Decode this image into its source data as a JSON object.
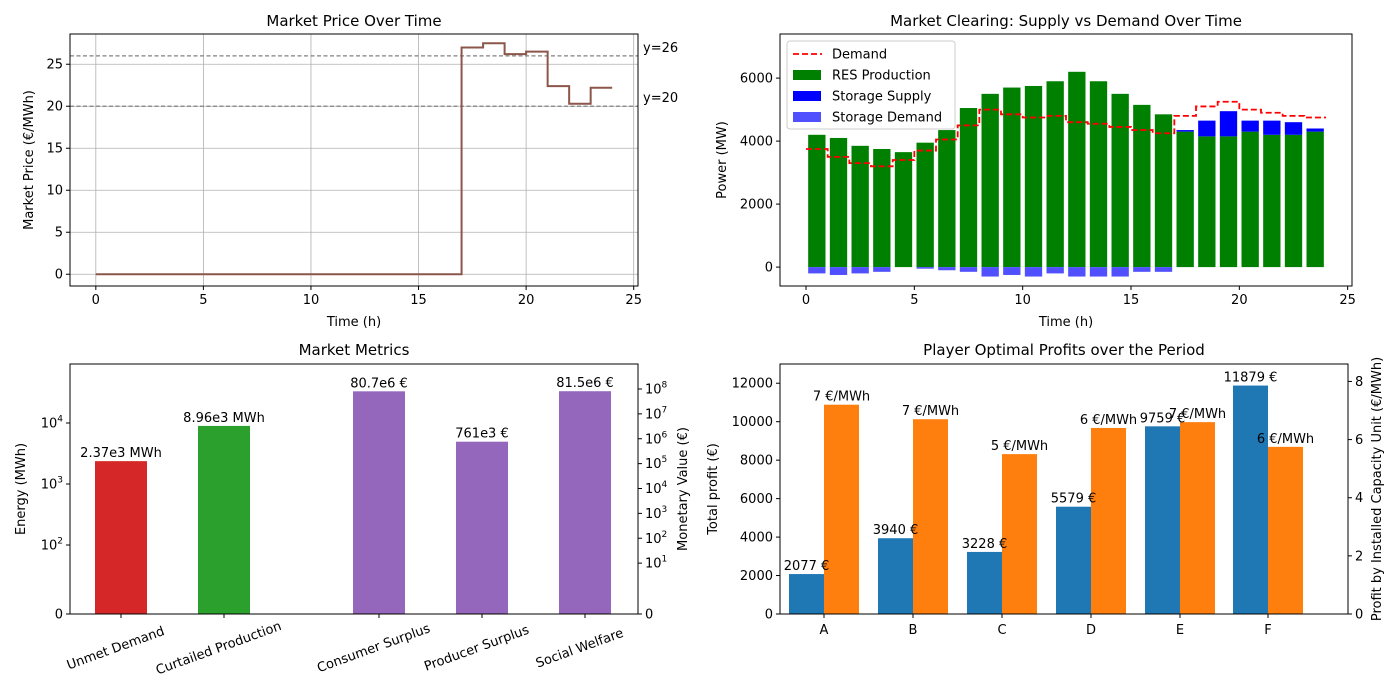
{
  "chart_data": [
    {
      "id": "price",
      "type": "line",
      "title": "Market Price Over Time",
      "xlabel": "Time (h)",
      "ylabel": "Market Price (€/MWh)",
      "xlim": [
        -1.2,
        25.2
      ],
      "ylim": [
        -1.4,
        28.6
      ],
      "xticks": [
        0,
        5,
        10,
        15,
        20,
        25
      ],
      "yticks": [
        0,
        5,
        10,
        15,
        20,
        25
      ],
      "grid": true,
      "series": [
        {
          "color": "#8c564b",
          "step": "post",
          "x": [
            0,
            1,
            2,
            3,
            4,
            5,
            6,
            7,
            8,
            9,
            10,
            11,
            12,
            13,
            14,
            15,
            16,
            17,
            18,
            19,
            20,
            21,
            22,
            23,
            24
          ],
          "values": [
            0,
            0,
            0,
            0,
            0,
            0,
            0,
            0,
            0,
            0,
            0,
            0,
            0,
            0,
            0,
            0,
            0,
            27,
            27.5,
            26.2,
            26.5,
            22.4,
            20.3,
            22.2,
            22.2
          ]
        }
      ],
      "hlines": [
        {
          "y": 26,
          "label": "y=26"
        },
        {
          "y": 20,
          "label": "y=20"
        }
      ]
    },
    {
      "id": "clearing",
      "type": "bar",
      "title": "Market Clearing: Supply vs Demand Over Time",
      "xlabel": "Time (h)",
      "ylabel": "Power (MW)",
      "xlim": [
        -1.2,
        25.2
      ],
      "ylim": [
        -600,
        7400
      ],
      "xticks": [
        0,
        5,
        10,
        15,
        20,
        25
      ],
      "yticks": [
        0,
        2000,
        4000,
        6000
      ],
      "grid": false,
      "legend": "upper left",
      "series": [
        {
          "name": "Demand",
          "color": "#ff0000",
          "style": "dashed-step",
          "values": [
            3750,
            3500,
            3300,
            3200,
            3400,
            3700,
            4050,
            4500,
            5000,
            4850,
            4750,
            4800,
            4600,
            4550,
            4450,
            4350,
            4250,
            4800,
            5100,
            5250,
            5000,
            4900,
            4800,
            4750
          ]
        },
        {
          "name": "RES Production",
          "color": "#008000",
          "values": [
            4200,
            4100,
            3850,
            3750,
            3650,
            3950,
            4350,
            5050,
            5500,
            5700,
            5750,
            5900,
            6200,
            5900,
            5500,
            5150,
            4850,
            4300,
            4150,
            4150,
            4300,
            4200,
            4200,
            4300
          ]
        },
        {
          "name": "Storage Supply",
          "color": "#0000ff",
          "values": [
            0,
            0,
            0,
            0,
            0,
            0,
            0,
            0,
            0,
            0,
            0,
            0,
            0,
            0,
            0,
            0,
            0,
            50,
            500,
            800,
            350,
            450,
            400,
            100
          ]
        },
        {
          "name": "Storage Demand",
          "color": "#5050ff",
          "values": [
            -200,
            -250,
            -200,
            -150,
            0,
            -50,
            -100,
            -150,
            -300,
            -250,
            -300,
            -200,
            -300,
            -300,
            -300,
            -150,
            -150,
            0,
            0,
            0,
            0,
            0,
            0,
            0
          ]
        }
      ]
    },
    {
      "id": "metrics",
      "type": "bar",
      "title": "Market Metrics",
      "ylabel": "Energy (MWh)",
      "y2label": "Monetary Value (€)",
      "yscale": "symlog",
      "categories": [
        "Unmet Demand",
        "Curtailed Production",
        "Consumer Surplus",
        "Producer Surplus",
        "Social Welfare"
      ],
      "values": [
        2370,
        8960,
        80700000,
        761000,
        81500000
      ],
      "axis": [
        "energy",
        "energy",
        "money",
        "money",
        "money"
      ],
      "colors": [
        "#d62728",
        "#2ca02c",
        "#9467bd",
        "#9467bd",
        "#9467bd"
      ],
      "value_labels": [
        "2.37e3 MWh",
        "8.96e3 MWh",
        "80.7e6 €",
        "761e3 €",
        "81.5e6 €"
      ],
      "yticks": [
        "0",
        "10",
        "10",
        "10"
      ],
      "yticks_exp": [
        "",
        "2",
        "3",
        "4"
      ],
      "y2ticks": [
        "0",
        "10",
        "10",
        "10",
        "10",
        "10",
        "10",
        "10",
        "10"
      ],
      "y2ticks_exp": [
        "",
        "1",
        "2",
        "3",
        "4",
        "5",
        "6",
        "7",
        "8"
      ]
    },
    {
      "id": "profits",
      "type": "bar",
      "title": "Player Optimal Profits over the Period",
      "ylabel": "Total profit (€)",
      "y2label": "Profit by Installed Capacity Unit (€/MWh)",
      "categories": [
        "A",
        "B",
        "C",
        "D",
        "E",
        "F"
      ],
      "ylim": [
        0,
        13000
      ],
      "y2lim": [
        0,
        8.6
      ],
      "yticks": [
        0,
        2000,
        4000,
        6000,
        8000,
        10000,
        12000
      ],
      "y2ticks": [
        0,
        2,
        4,
        6,
        8
      ],
      "series": [
        {
          "name": "Total profit",
          "color": "#1f77b4",
          "values": [
            2077,
            3940,
            3228,
            5579,
            9759,
            11879
          ],
          "labels": [
            "2077 €",
            "3940 €",
            "3228 €",
            "5579 €",
            "9759 €",
            "11879 €"
          ]
        },
        {
          "name": "Profit by Installed Capacity Unit",
          "color": "#ff7f0e",
          "values": [
            7.2,
            6.7,
            5.5,
            6.4,
            6.6,
            5.75
          ],
          "labels": [
            "7 €/MWh",
            "7 €/MWh",
            "5 €/MWh",
            "6 €/MWh",
            "7 €/MWh",
            "6 €/MWh"
          ]
        }
      ]
    }
  ]
}
